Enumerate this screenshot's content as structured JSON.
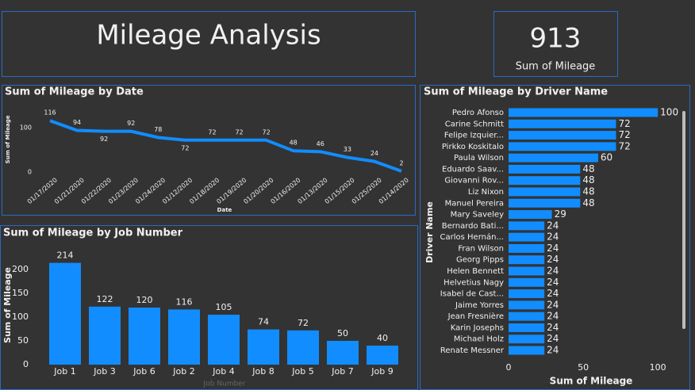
{
  "header": {
    "title": "Mileage Analysis"
  },
  "kpi": {
    "value": 913,
    "label": "Sum of Mileage"
  },
  "chart_data": [
    {
      "type": "line",
      "title": "Sum of Mileage by Date",
      "x_label": "Date",
      "y_label": "Sum of Mileage",
      "color": "#118dff",
      "categories": [
        "01/17/2020",
        "01/21/2020",
        "01/22/2020",
        "01/23/2020",
        "01/24/2020",
        "01/12/2020",
        "01/18/2020",
        "01/19/2020",
        "01/20/2020",
        "01/16/2020",
        "01/13/2020",
        "01/15/2020",
        "01/25/2020",
        "01/14/2020"
      ],
      "values": [
        116,
        94,
        92,
        92,
        78,
        72,
        72,
        72,
        72,
        48,
        46,
        33,
        24,
        2
      ],
      "ylim": [
        0,
        120
      ],
      "yticks": [
        0,
        100
      ]
    },
    {
      "type": "bar",
      "title": "Sum of Mileage by Job Number",
      "x_label": "Job Number",
      "y_label": "Sum of Mileage",
      "color": "#118dff",
      "categories": [
        "Job 1",
        "Job 3",
        "Job 6",
        "Job 2",
        "Job 4",
        "Job 8",
        "Job 5",
        "Job 7",
        "Job 9"
      ],
      "values": [
        214,
        122,
        120,
        116,
        105,
        74,
        72,
        50,
        40
      ],
      "ylim": [
        0,
        220
      ],
      "yticks": [
        0,
        50,
        100,
        150,
        200
      ]
    },
    {
      "type": "barh",
      "title": "Sum of Mileage by Driver Name",
      "x_label": "Sum of Mileage",
      "y_label": "Driver Name",
      "color": "#118dff",
      "categories": [
        "Pedro Afonso",
        "Carine Schmitt",
        "Felipe Izquier...",
        "Pirkko Koskitalo",
        "Paula Wilson",
        "Eduardo Saav...",
        "Giovanni Rov...",
        "Liz Nixon",
        "Manuel Pereira",
        "Mary Saveley",
        "Bernardo Bati...",
        "Carlos Hernán...",
        "Fran Wilson",
        "Georg Pipps",
        "Helen Bennett",
        "Helvetius Nagy",
        "Isabel de Cast...",
        "Jaime Yorres",
        "Jean Fresnière",
        "Karin Josephs",
        "Michael Holz",
        "Renate Messner"
      ],
      "values": [
        100,
        72,
        72,
        72,
        60,
        48,
        48,
        48,
        48,
        29,
        24,
        24,
        24,
        24,
        24,
        24,
        24,
        24,
        24,
        24,
        24,
        24
      ],
      "xlim": [
        0,
        110
      ],
      "xticks": [
        0,
        50,
        100
      ]
    }
  ]
}
